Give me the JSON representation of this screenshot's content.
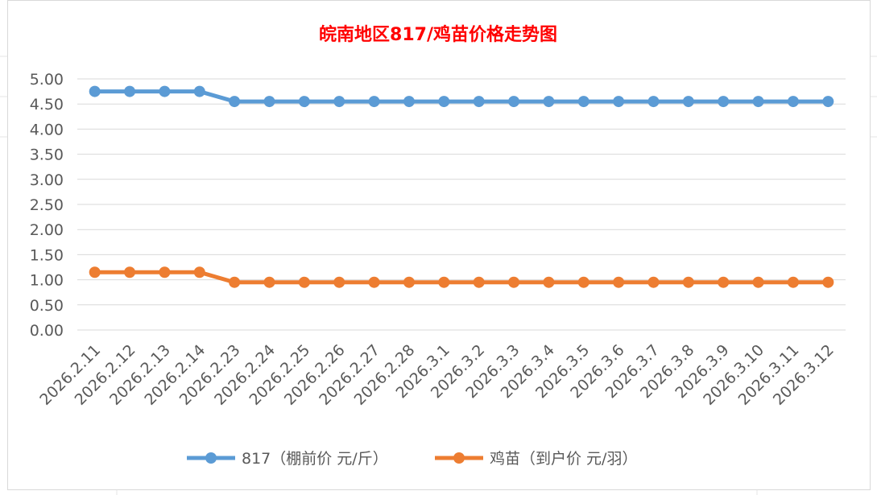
{
  "chart_data": {
    "type": "line",
    "title": "皖南地区817/鸡苗价格走势图",
    "title_color": "#ff0000",
    "categories": [
      "2026.2.11",
      "2026.2.12",
      "2026.2.13",
      "2026.2.14",
      "2026.2.23",
      "2026.2.24",
      "2026.2.25",
      "2026.2.26",
      "2026.2.27",
      "2026.2.28",
      "2026.3.1",
      "2026.3.2",
      "2026.3.3",
      "2026.3.4",
      "2026.3.5",
      "2026.3.6",
      "2026.3.7",
      "2026.3.8",
      "2026.3.9",
      "2026.3.10",
      "2026.3.11",
      "2026.3.12"
    ],
    "series": [
      {
        "name": "817（棚前价 元/斤）",
        "color": "#5b9bd5",
        "values": [
          4.75,
          4.75,
          4.75,
          4.75,
          4.55,
          4.55,
          4.55,
          4.55,
          4.55,
          4.55,
          4.55,
          4.55,
          4.55,
          4.55,
          4.55,
          4.55,
          4.55,
          4.55,
          4.55,
          4.55,
          4.55,
          4.55
        ]
      },
      {
        "name": "鸡苗（到户价 元/羽）",
        "color": "#ed7d31",
        "values": [
          1.15,
          1.15,
          1.15,
          1.15,
          0.95,
          0.95,
          0.95,
          0.95,
          0.95,
          0.95,
          0.95,
          0.95,
          0.95,
          0.95,
          0.95,
          0.95,
          0.95,
          0.95,
          0.95,
          0.95,
          0.95,
          0.95
        ]
      }
    ],
    "ylim": [
      0,
      5
    ],
    "yticks": [
      "0.00",
      "0.50",
      "1.00",
      "1.50",
      "2.00",
      "2.50",
      "3.00",
      "3.50",
      "4.00",
      "4.50",
      "5.00"
    ],
    "grid": true,
    "legend_position": "bottom"
  }
}
